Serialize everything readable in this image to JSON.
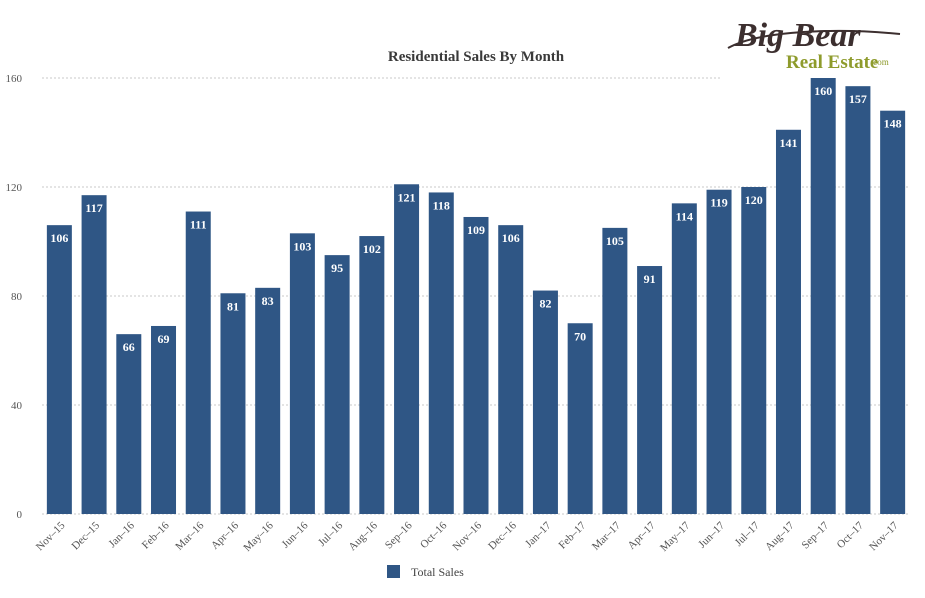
{
  "logo": {
    "line1": "Big Bear",
    "line2": "Real Estate",
    "suffix": ".com",
    "colors": {
      "dark": "#3c2f2f",
      "green": "#8e9b2c"
    }
  },
  "chart_data": {
    "type": "bar",
    "title": "Residential Sales By Month",
    "xlabel": "",
    "ylabel": "",
    "ylim": [
      0,
      160
    ],
    "yticks": [
      0,
      40,
      80,
      120,
      160
    ],
    "grid": true,
    "legend_position": "bottom",
    "bar_color": "#2f5685",
    "categories": [
      "Nov–15",
      "Dec–15",
      "Jan–16",
      "Feb–16",
      "Mar–16",
      "Apr–16",
      "May–16",
      "Jun–16",
      "Jul–16",
      "Aug–16",
      "Sep–16",
      "Oct–16",
      "Nov–16",
      "Dec–16",
      "Jan–17",
      "Feb–17",
      "Mar–17",
      "Apr–17",
      "May–17",
      "Jun–17",
      "Jul–17",
      "Aug–17",
      "Sep–17",
      "Oct–17",
      "Nov–17"
    ],
    "series": [
      {
        "name": "Total Sales",
        "values": [
          106,
          117,
          66,
          69,
          111,
          81,
          83,
          103,
          95,
          102,
          121,
          118,
          109,
          106,
          82,
          70,
          105,
          91,
          114,
          119,
          120,
          141,
          160,
          157,
          148
        ]
      }
    ]
  }
}
